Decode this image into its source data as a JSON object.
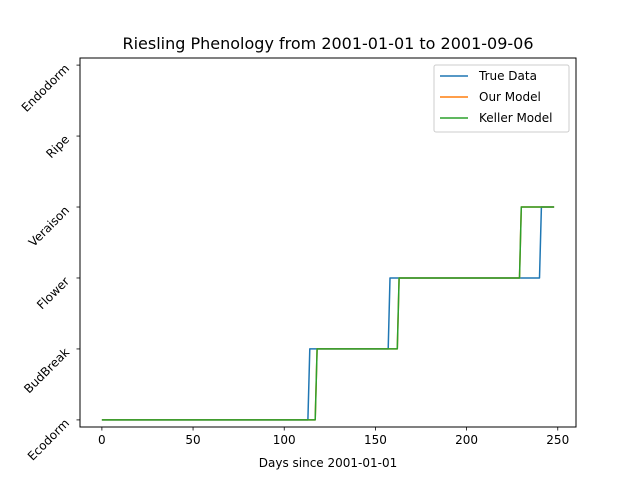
{
  "chart_data": {
    "type": "line",
    "title": "Riesling Phenology from 2001-01-01 to 2001-09-06",
    "xlabel": "Days since 2001-01-01",
    "ylabel": "",
    "xlim": [
      -12,
      260
    ],
    "x_ticks": [
      0,
      50,
      100,
      150,
      200,
      250
    ],
    "y_categories": [
      "Ecodorm",
      "BudBreak",
      "Flower",
      "Veraison",
      "Ripe",
      "Endodorm"
    ],
    "ylim": [
      -0.1,
      5.1
    ],
    "grid": false,
    "legend_position": "top-right",
    "series": [
      {
        "name": "True Data",
        "color": "#1f77b4",
        "points": [
          [
            0,
            0
          ],
          [
            113,
            0
          ],
          [
            114,
            1
          ],
          [
            157,
            1
          ],
          [
            158,
            2
          ],
          [
            240,
            2
          ],
          [
            241,
            3
          ],
          [
            248,
            3
          ]
        ]
      },
      {
        "name": "Our Model",
        "color": "#ff7f0e",
        "points": [
          [
            0,
            0
          ],
          [
            117,
            0
          ],
          [
            118,
            1
          ],
          [
            162,
            1
          ],
          [
            163,
            2
          ],
          [
            229,
            2
          ],
          [
            230,
            3
          ],
          [
            248,
            3
          ]
        ]
      },
      {
        "name": "Keller Model",
        "color": "#2ca02c",
        "points": [
          [
            0,
            0
          ],
          [
            117,
            0
          ],
          [
            118,
            1
          ],
          [
            162,
            1
          ],
          [
            163,
            2
          ],
          [
            229,
            2
          ],
          [
            230,
            3
          ],
          [
            248,
            3
          ]
        ]
      }
    ]
  }
}
